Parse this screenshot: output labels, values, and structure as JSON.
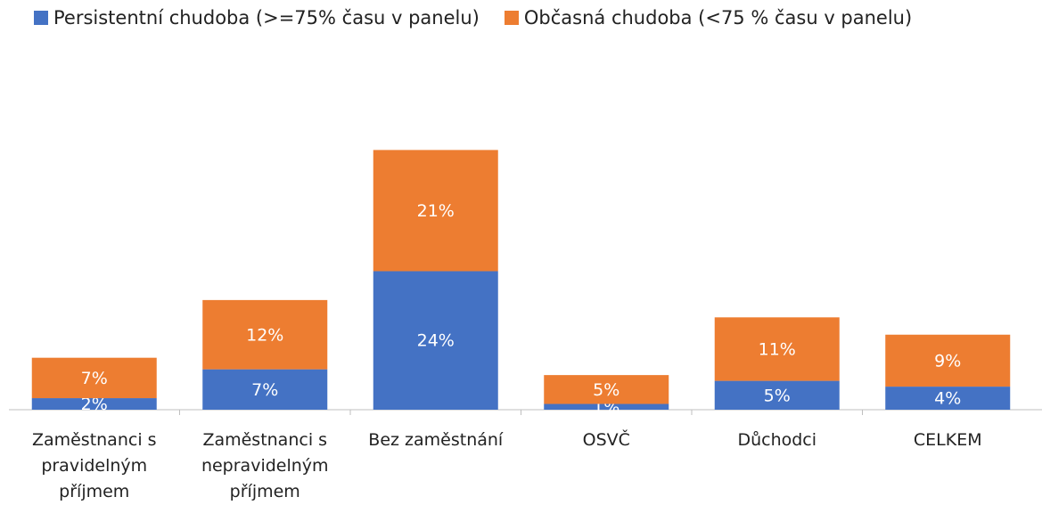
{
  "chart_data": {
    "type": "stacked_bar",
    "categories": [
      "Zaměstnanci s pravidelným příjmem",
      "Zaměstnanci s nepravidelným příjmem",
      "Bez zaměstnání",
      "OSVČ",
      "Důchodci",
      "CELKEM"
    ],
    "series": [
      {
        "name": "Persistentní chudoba (>=75% času v panelu)",
        "color": "#4472c4",
        "values": [
          2,
          7,
          24,
          1,
          5,
          4
        ],
        "value_labels": [
          "2%",
          "7%",
          "24%",
          "1%",
          "5%",
          "4%"
        ]
      },
      {
        "name": "Občasná chudoba (<75 % času v panelu)",
        "color": "#ed7d31",
        "values": [
          7,
          12,
          21,
          5,
          11,
          9
        ],
        "value_labels": [
          "7%",
          "12%",
          "21%",
          "5%",
          "11%",
          "9%"
        ]
      }
    ]
  }
}
